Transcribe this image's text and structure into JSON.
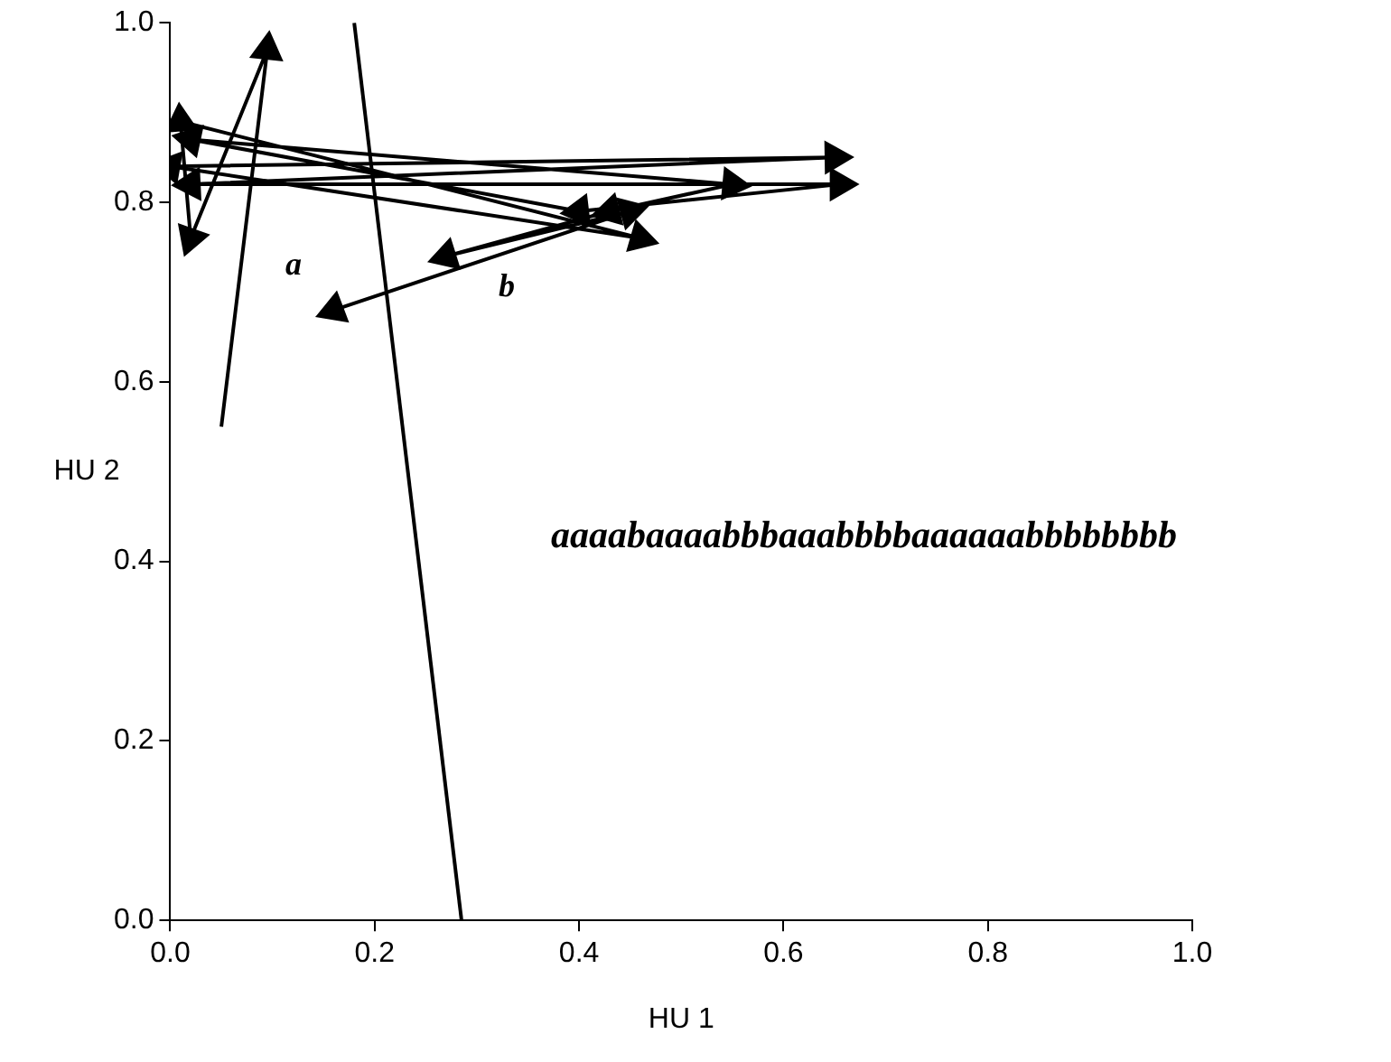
{
  "chart_data": {
    "type": "line",
    "xlabel": "HU 1",
    "ylabel": "HU 2",
    "xlim": [
      0,
      1
    ],
    "ylim": [
      0,
      1
    ],
    "xticks": [
      {
        "value": 0,
        "label": "0.0"
      },
      {
        "value": 0.2,
        "label": "0.2"
      },
      {
        "value": 0.4,
        "label": "0.4"
      },
      {
        "value": 0.6,
        "label": "0.6"
      },
      {
        "value": 0.8,
        "label": "0.8"
      },
      {
        "value": 1,
        "label": "1.0"
      }
    ],
    "yticks": [
      {
        "value": 0,
        "label": "0.0"
      },
      {
        "value": 0.2,
        "label": "0.2"
      },
      {
        "value": 0.4,
        "label": "0.4"
      },
      {
        "value": 0.6,
        "label": "0.6"
      },
      {
        "value": 0.8,
        "label": "0.8"
      },
      {
        "value": 1,
        "label": "1.0"
      }
    ],
    "grid": false,
    "legend": false,
    "line_style": "solid",
    "series": [
      {
        "color": "#000000",
        "marker": "triangle",
        "x": [
          0.05,
          0.095,
          0.02,
          0.01,
          0.46,
          0.0,
          0.65,
          0.02,
          0.655,
          0.4,
          0.02,
          0.55,
          0.43,
          0.27,
          0.45,
          0.16
        ],
        "values": [
          0.55,
          0.97,
          0.76,
          0.89,
          0.76,
          0.84,
          0.85,
          0.82,
          0.82,
          0.79,
          0.87,
          0.82,
          0.79,
          0.74,
          0.79,
          0.68
        ]
      },
      {
        "color": "#000000",
        "marker": "none",
        "x": [
          0.18,
          0.285
        ],
        "values": [
          1.0,
          0.0
        ]
      }
    ],
    "annotations": [
      "a",
      "b",
      "aaaabaaaabbbaaabbbbaaaaaabbbbbbbb"
    ]
  }
}
